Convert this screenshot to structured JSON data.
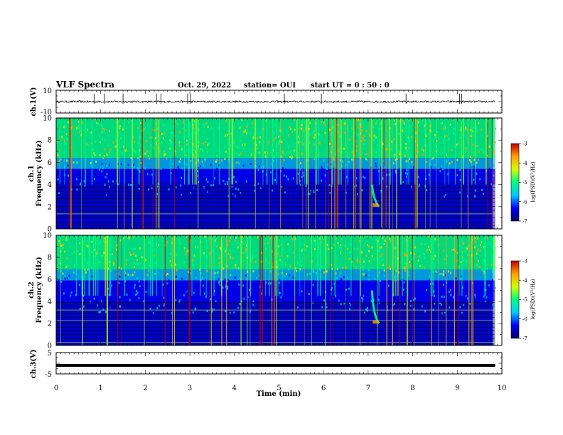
{
  "header": {
    "title": "VLF Spectra",
    "date": "Oct. 29, 2022",
    "station": "station= OUI",
    "start_ut": "start  UT =   0 : 50 : 0"
  },
  "chart_data": [
    {
      "type": "line",
      "panel": "ch1-waveform",
      "ylabel": "ch.1(V)",
      "ytick_labels": [
        "10",
        "-10"
      ],
      "ylim": [
        -10,
        10
      ],
      "x_range": [
        0,
        9.85
      ],
      "baseline": 0,
      "spike_times_min": [
        0.85,
        1.08,
        1.5,
        2.25,
        2.35,
        2.95,
        3.02,
        5.12,
        5.95,
        7.85,
        9.05,
        9.1
      ]
    },
    {
      "type": "heatmap",
      "panel": "ch1-spectrogram",
      "title": "ch.1",
      "ylabel": "Frequency (kHz)",
      "xlim": [
        0,
        10
      ],
      "ylim": [
        0,
        10
      ],
      "yticks": [
        0,
        2,
        4,
        6,
        8,
        10
      ],
      "colorbar_label": "log(PSD)(V²/Hz)",
      "colorbar_ticks": [
        -3,
        -4,
        -5,
        -6,
        -7
      ],
      "colorbar_range": [
        -7,
        -3
      ],
      "noise_floor_khz": 6,
      "tweek_time_min": 7.15,
      "tweek_freq_khz": [
        2,
        4
      ]
    },
    {
      "type": "heatmap",
      "panel": "ch2-spectrogram",
      "title": "ch.2",
      "ylabel": "Frequency (kHz)",
      "xlim": [
        0,
        10
      ],
      "ylim": [
        0,
        10
      ],
      "yticks": [
        0,
        2,
        4,
        6,
        8,
        10
      ],
      "colorbar_label": "log(PSD)(V²/Hz)",
      "colorbar_ticks": [
        -3,
        -4,
        -5,
        -6,
        -7
      ],
      "colorbar_range": [
        -7,
        -3
      ],
      "noise_floor_khz": 6.5,
      "tweek_time_min": 7.15,
      "tweek_freq_khz": [
        2,
        5
      ]
    },
    {
      "type": "line",
      "panel": "ch3-waveform",
      "ylabel": "ch.3(V)",
      "ytick_labels": [
        "5",
        "-5"
      ],
      "ylim": [
        -5,
        5
      ],
      "x_range": [
        0,
        9.85
      ],
      "level": -1
    }
  ],
  "xaxis": {
    "label": "Time (min)",
    "ticks": [
      "0",
      "1",
      "2",
      "3",
      "4",
      "5",
      "6",
      "7",
      "8",
      "9",
      "10"
    ]
  },
  "colors": {
    "trace": "#000000",
    "colormap": [
      "#000060",
      "#0000ff",
      "#00c8ff",
      "#00ff80",
      "#d0ff00",
      "#ffa000",
      "#c00000"
    ]
  }
}
